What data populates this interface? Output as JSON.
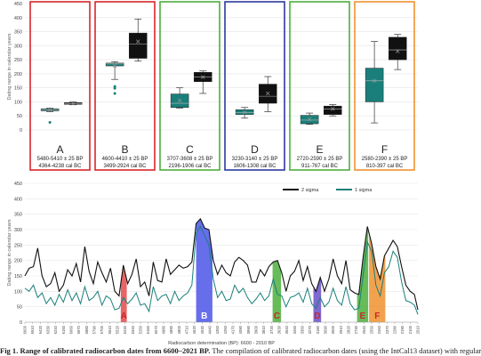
{
  "figure": {
    "caption_label": "Fig 1",
    "caption_title": "Range of calibrated radiocarbon dates from 6600–2021 BP.",
    "caption_text": "The compilation of calibrated radiocarbon dates (using the IntCal13 dataset) with regular"
  },
  "chart_data": [
    {
      "type": "boxplot",
      "ylabel": "Dating range in calendar years",
      "ylim": [
        0,
        450
      ],
      "yticks": [
        0,
        50,
        100,
        150,
        200,
        250,
        300,
        350,
        400,
        450
      ],
      "series_colors": {
        "one_sigma": "#1a7f7a",
        "two_sigma": "#111111"
      },
      "groups": [
        {
          "letter": "A",
          "bp": "5480-5410 ± 25 BP",
          "cal": "4364-4238 cal BC",
          "frame": "#d9262b",
          "one_sigma": {
            "min": 65,
            "q1": 68,
            "median": 72,
            "q3": 75,
            "max": 78,
            "mean": 72,
            "outliers": [
              27
            ]
          },
          "two_sigma": {
            "min": 90,
            "q1": 91,
            "median": 94,
            "q3": 97,
            "max": 100,
            "mean": 94,
            "outliers": []
          }
        },
        {
          "letter": "B",
          "bp": "4600-4410 ± 25 BP",
          "cal": "3499-2924 cal BC",
          "frame": "#d9262b",
          "one_sigma": {
            "min": 180,
            "q1": 228,
            "median": 235,
            "q3": 238,
            "max": 243,
            "mean": 228,
            "outliers": [
              130,
              148,
              155
            ]
          },
          "two_sigma": {
            "min": 245,
            "q1": 255,
            "median": 305,
            "q3": 345,
            "max": 395,
            "mean": 315,
            "outliers": []
          }
        },
        {
          "letter": "C",
          "bp": "3707-3608 ± 25 BP",
          "cal": "2196-1906 cal BC",
          "frame": "#4caf3c",
          "one_sigma": {
            "min": 78,
            "q1": 80,
            "median": 95,
            "q3": 128,
            "max": 150,
            "mean": 105,
            "outliers": []
          },
          "two_sigma": {
            "min": 130,
            "q1": 172,
            "median": 188,
            "q3": 205,
            "max": 210,
            "mean": 188,
            "outliers": []
          }
        },
        {
          "letter": "D",
          "bp": "3230-3140 ± 25 BP",
          "cal": "1606-1308 cal BC",
          "frame": "#2b3a9e",
          "one_sigma": {
            "min": 42,
            "q1": 55,
            "median": 62,
            "q3": 72,
            "max": 80,
            "mean": 63,
            "outliers": []
          },
          "two_sigma": {
            "min": 65,
            "q1": 95,
            "median": 120,
            "q3": 163,
            "max": 190,
            "mean": 130,
            "outliers": []
          }
        },
        {
          "letter": "E",
          "bp": "2720-2590 ± 25 BP",
          "cal": "911-767 cal BC",
          "frame": "#4caf3c",
          "one_sigma": {
            "min": 20,
            "q1": 22,
            "median": 35,
            "q3": 52,
            "max": 60,
            "mean": 38,
            "outliers": []
          },
          "two_sigma": {
            "min": 50,
            "q1": 55,
            "median": 75,
            "q3": 85,
            "max": 90,
            "mean": 75,
            "outliers": []
          }
        },
        {
          "letter": "F",
          "bp": "2580-2390 ± 25 BP",
          "cal": "810-397 cal BC",
          "frame": "#f0922e",
          "one_sigma": {
            "min": 25,
            "q1": 100,
            "median": 175,
            "q3": 220,
            "max": 315,
            "mean": 175,
            "outliers": []
          },
          "two_sigma": {
            "min": 215,
            "q1": 250,
            "median": 285,
            "q3": 330,
            "max": 340,
            "mean": 280,
            "outliers": []
          }
        }
      ]
    },
    {
      "type": "line",
      "ylabel": "Dating range in calendar years",
      "xlabel": "Radiocarbon determination (BP): 6600 - 2010 BP",
      "ylim": [
        0,
        450
      ],
      "yticks": [
        0,
        50,
        100,
        150,
        200,
        250,
        300,
        350,
        400,
        450
      ],
      "xlim": [
        6600,
        2010
      ],
      "xticks": [
        6600,
        6510,
        6420,
        6330,
        6240,
        6150,
        6060,
        5970,
        5880,
        5790,
        5700,
        5610,
        5520,
        5430,
        5340,
        5250,
        5160,
        5070,
        4980,
        4890,
        4800,
        4710,
        4620,
        4530,
        4440,
        4350,
        4260,
        4170,
        4080,
        3990,
        3900,
        3810,
        3720,
        3630,
        3540,
        3450,
        3360,
        3270,
        3180,
        3090,
        3000,
        2910,
        2820,
        2730,
        2640,
        2550,
        2460,
        2370,
        2280,
        2190,
        2100,
        2010
      ],
      "legend": [
        "2 sigma",
        "1 sigma"
      ],
      "legend_position": "top-right",
      "series": [
        {
          "name": "2 sigma",
          "color": "#111111",
          "x": [
            6600,
            6550,
            6500,
            6450,
            6400,
            6350,
            6300,
            6250,
            6200,
            6150,
            6100,
            6050,
            6000,
            5950,
            5900,
            5850,
            5800,
            5750,
            5700,
            5650,
            5600,
            5550,
            5500,
            5450,
            5400,
            5350,
            5300,
            5250,
            5200,
            5150,
            5100,
            5050,
            5000,
            4950,
            4900,
            4850,
            4800,
            4750,
            4700,
            4650,
            4600,
            4550,
            4500,
            4450,
            4400,
            4350,
            4300,
            4250,
            4200,
            4150,
            4100,
            4050,
            4000,
            3950,
            3900,
            3850,
            3800,
            3750,
            3700,
            3650,
            3600,
            3550,
            3500,
            3450,
            3400,
            3350,
            3300,
            3250,
            3200,
            3150,
            3100,
            3050,
            3000,
            2950,
            2900,
            2850,
            2800,
            2750,
            2700,
            2650,
            2600,
            2550,
            2500,
            2450,
            2400,
            2350,
            2300,
            2250,
            2200,
            2150,
            2100,
            2050,
            2010
          ],
          "values": [
            150,
            175,
            180,
            240,
            150,
            115,
            125,
            160,
            100,
            120,
            170,
            150,
            190,
            130,
            245,
            165,
            125,
            195,
            160,
            130,
            175,
            100,
            85,
            185,
            125,
            155,
            205,
            115,
            130,
            85,
            195,
            135,
            130,
            205,
            155,
            170,
            185,
            175,
            180,
            195,
            320,
            335,
            305,
            300,
            200,
            155,
            185,
            160,
            150,
            195,
            210,
            200,
            185,
            130,
            130,
            170,
            150,
            180,
            195,
            200,
            160,
            100,
            150,
            165,
            200,
            135,
            180,
            125,
            100,
            145,
            100,
            140,
            205,
            150,
            125,
            200,
            105,
            95,
            90,
            210,
            310,
            255,
            180,
            140,
            215,
            240,
            265,
            245,
            180,
            120,
            100,
            90,
            40
          ]
        },
        {
          "name": "1 sigma",
          "color": "#1a7f7a",
          "x": [
            6600,
            6550,
            6500,
            6450,
            6400,
            6350,
            6300,
            6250,
            6200,
            6150,
            6100,
            6050,
            6000,
            5950,
            5900,
            5850,
            5800,
            5750,
            5700,
            5650,
            5600,
            5550,
            5500,
            5450,
            5400,
            5350,
            5300,
            5250,
            5200,
            5150,
            5100,
            5050,
            5000,
            4950,
            4900,
            4850,
            4800,
            4750,
            4700,
            4650,
            4600,
            4550,
            4500,
            4450,
            4400,
            4350,
            4300,
            4250,
            4200,
            4150,
            4100,
            4050,
            4000,
            3950,
            3900,
            3850,
            3800,
            3750,
            3700,
            3650,
            3600,
            3550,
            3500,
            3450,
            3400,
            3350,
            3300,
            3250,
            3200,
            3150,
            3100,
            3050,
            3000,
            2950,
            2900,
            2850,
            2800,
            2750,
            2700,
            2650,
            2600,
            2550,
            2500,
            2450,
            2400,
            2350,
            2300,
            2250,
            2200,
            2150,
            2100,
            2050,
            2010
          ],
          "values": [
            110,
            100,
            120,
            80,
            95,
            60,
            80,
            55,
            90,
            65,
            105,
            70,
            95,
            60,
            115,
            70,
            80,
            100,
            55,
            85,
            75,
            40,
            45,
            80,
            60,
            75,
            95,
            55,
            60,
            35,
            115,
            70,
            85,
            90,
            60,
            100,
            70,
            85,
            95,
            120,
            290,
            310,
            280,
            250,
            140,
            80,
            100,
            70,
            75,
            120,
            95,
            110,
            80,
            60,
            75,
            95,
            70,
            85,
            140,
            90,
            85,
            50,
            80,
            85,
            95,
            65,
            110,
            60,
            45,
            80,
            50,
            65,
            110,
            70,
            55,
            115,
            60,
            40,
            45,
            150,
            260,
            230,
            120,
            85,
            160,
            180,
            230,
            210,
            130,
            70,
            65,
            55,
            25
          ]
        }
      ],
      "highlights": [
        {
          "label": "A",
          "start": 5480,
          "end": 5410,
          "color": "#e34a4a"
        },
        {
          "label": "B",
          "start": 4600,
          "end": 4410,
          "color": "#4b55e8"
        },
        {
          "label": "C",
          "start": 3707,
          "end": 3608,
          "color": "#4caf3c"
        },
        {
          "label": "D",
          "start": 3230,
          "end": 3140,
          "color": "#6a4fc8"
        },
        {
          "label": "E",
          "start": 2720,
          "end": 2590,
          "color": "#4caf3c"
        },
        {
          "label": "F",
          "start": 2580,
          "end": 2390,
          "color": "#f0922e"
        }
      ]
    }
  ]
}
